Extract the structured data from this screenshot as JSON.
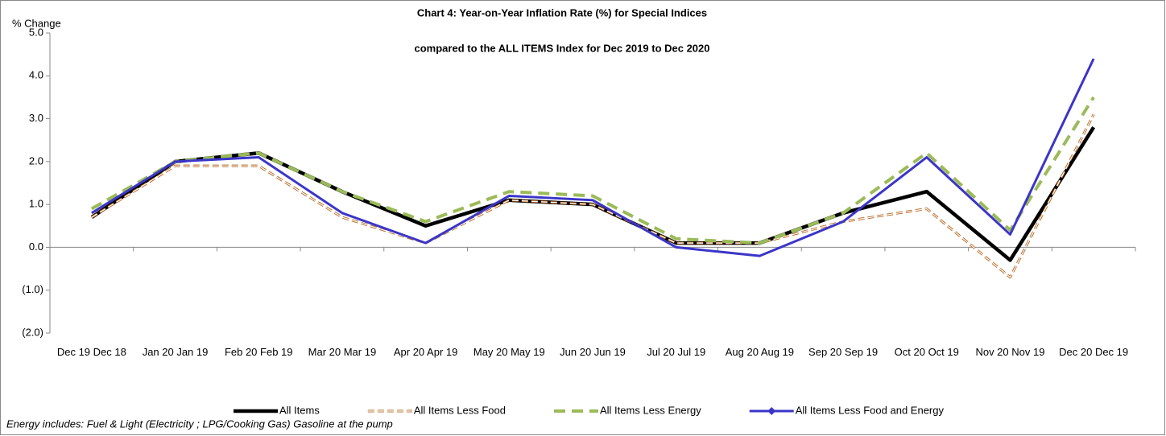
{
  "chart_data": {
    "type": "line",
    "title": [
      "Chart 4: Year-on-Year Inflation Rate (%) for Special Indices",
      "compared to the ALL ITEMS Index for Dec 2019 to Dec 2020"
    ],
    "y_label": "% Change",
    "note": "Energy includes: Fuel & Light  (Electricity ; LPG/Cooking Gas) Gasoline at the pump",
    "categories": [
      "Dec 19 Dec 18",
      "Jan 20 Jan 19",
      "Feb 20 Feb 19",
      "Mar 20 Mar 19",
      "Apr 20 Apr 19",
      "May 20 May 19",
      "Jun 20 Jun 19",
      "Jul 20 Jul 19",
      "Aug 20 Aug 19",
      "Sep 20 Sep 19",
      "Oct 20 Oct 19",
      "Nov 20 Nov 19",
      "Dec 20 Dec 19"
    ],
    "series": [
      {
        "name": "All Items",
        "color": "#000000",
        "dash": "solid",
        "values": [
          0.7,
          2.0,
          2.2,
          1.3,
          0.5,
          1.1,
          1.0,
          0.1,
          0.1,
          0.8,
          1.3,
          -0.3,
          2.8
        ]
      },
      {
        "name": "All Items Less Food",
        "color": "#b5651d",
        "dash": "hollow",
        "values": [
          0.7,
          1.9,
          1.9,
          0.7,
          0.1,
          1.1,
          1.0,
          0.1,
          0.1,
          0.6,
          0.9,
          -0.7,
          3.1
        ]
      },
      {
        "name": "All Items Less Energy",
        "color": "#9bbb59",
        "dash": "dashed",
        "values": [
          0.9,
          2.0,
          2.2,
          1.3,
          0.6,
          1.3,
          1.2,
          0.2,
          0.1,
          0.8,
          2.2,
          0.4,
          3.5
        ]
      },
      {
        "name": "All Items Less Food and Energy",
        "color": "#3b35c8",
        "dash": "solid",
        "marker": "diamond",
        "values": [
          0.8,
          2.0,
          2.1,
          0.8,
          0.1,
          1.2,
          1.1,
          0.0,
          -0.2,
          0.6,
          2.1,
          0.3,
          4.4
        ]
      }
    ],
    "ylim": [
      -2,
      5
    ],
    "yticks": [
      {
        "value": -2,
        "label": "(2.0)"
      },
      {
        "value": -1,
        "label": "(1.0)"
      },
      {
        "value": 0,
        "label": "0.0"
      },
      {
        "value": 1,
        "label": "1.0"
      },
      {
        "value": 2,
        "label": "2.0"
      },
      {
        "value": 3,
        "label": "3.0"
      },
      {
        "value": 4,
        "label": "4.0"
      },
      {
        "value": 5,
        "label": "5.0"
      }
    ],
    "legend": "bottom"
  }
}
